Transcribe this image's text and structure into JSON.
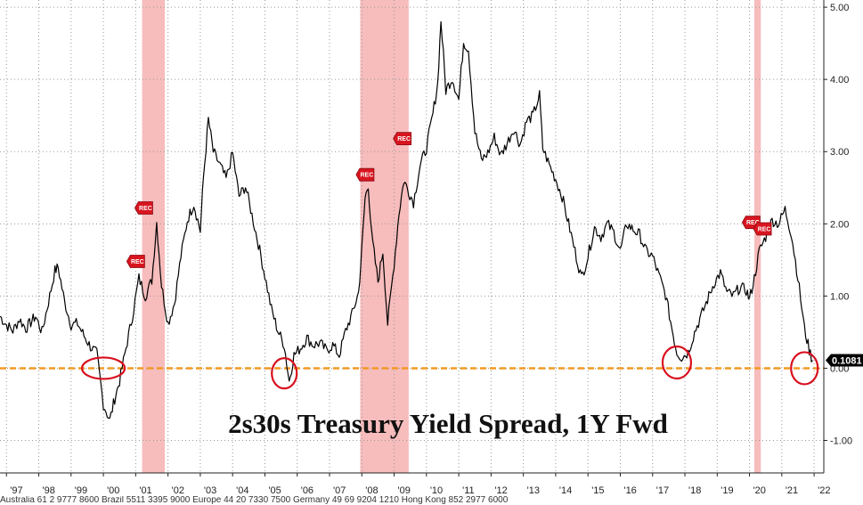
{
  "chart_data": {
    "type": "line",
    "title": "2s30s Treasury Yield Spread, 1Y Fwd",
    "x_ticks": [
      "'97",
      "'98",
      "'99",
      "'00",
      "'01",
      "'02",
      "'03",
      "'04",
      "'05",
      "'06",
      "'07",
      "'08",
      "'09",
      "'10",
      "'11",
      "'12",
      "'13",
      "'14",
      "'15",
      "'16",
      "'17",
      "'18",
      "'19",
      "'20",
      "'21",
      "'22"
    ],
    "y_ticks": [
      "5.00",
      "4.00",
      "3.00",
      "2.00",
      "1.00",
      "0.00",
      "-1.00"
    ],
    "ylim": [
      -1.45,
      5.1
    ],
    "xlim": [
      1996.8,
      2022.3
    ],
    "last_value": "0.1081",
    "reference_line": 0.0,
    "recessions": [
      [
        2001.2,
        2001.9
      ],
      [
        2007.95,
        2009.45
      ],
      [
        2020.15,
        2020.35
      ]
    ],
    "rec_labels": [
      {
        "label": "REC",
        "x": 2001.0,
        "y": 1.48
      },
      {
        "label": "REC",
        "x": 2001.25,
        "y": 2.22
      },
      {
        "label": "REC",
        "x": 2008.1,
        "y": 2.68
      },
      {
        "label": "REC",
        "x": 2009.25,
        "y": 3.18
      },
      {
        "label": "REC",
        "x": 2020.05,
        "y": 2.02
      },
      {
        "label": "REC",
        "x": 2020.4,
        "y": 1.93
      }
    ],
    "circles": [
      {
        "x": 2000.0,
        "y": 0.0
      },
      {
        "x": 2005.6,
        "y": -0.07
      },
      {
        "x": 2017.75,
        "y": 0.08
      },
      {
        "x": 2021.7,
        "y": 0.0
      }
    ],
    "series": [
      {
        "points": [
          [
            1996.8,
            0.72
          ],
          [
            1997.0,
            0.6
          ],
          [
            1997.2,
            0.52
          ],
          [
            1997.4,
            0.68
          ],
          [
            1997.6,
            0.55
          ],
          [
            1997.9,
            0.72
          ],
          [
            1998.1,
            0.5
          ],
          [
            1998.3,
            0.92
          ],
          [
            1998.5,
            1.35
          ],
          [
            1998.6,
            1.4
          ],
          [
            1998.8,
            0.92
          ],
          [
            1999.0,
            0.6
          ],
          [
            1999.2,
            0.62
          ],
          [
            1999.4,
            0.45
          ],
          [
            1999.6,
            0.3
          ],
          [
            1999.8,
            0.2
          ],
          [
            2000.0,
            -0.5
          ],
          [
            2000.2,
            -0.72
          ],
          [
            2000.35,
            -0.42
          ],
          [
            2000.5,
            -0.18
          ],
          [
            2000.7,
            0.28
          ],
          [
            2000.9,
            0.72
          ],
          [
            2001.1,
            1.25
          ],
          [
            2001.3,
            1.0
          ],
          [
            2001.5,
            1.22
          ],
          [
            2001.65,
            2.02
          ],
          [
            2001.8,
            1.15
          ],
          [
            2002.0,
            0.62
          ],
          [
            2002.2,
            0.9
          ],
          [
            2002.4,
            1.55
          ],
          [
            2002.6,
            2.05
          ],
          [
            2002.8,
            2.28
          ],
          [
            2003.0,
            1.9
          ],
          [
            2003.1,
            2.65
          ],
          [
            2003.25,
            3.45
          ],
          [
            2003.4,
            3.0
          ],
          [
            2003.6,
            2.82
          ],
          [
            2003.8,
            2.62
          ],
          [
            2004.0,
            2.98
          ],
          [
            2004.2,
            2.38
          ],
          [
            2004.4,
            2.52
          ],
          [
            2004.6,
            2.12
          ],
          [
            2004.8,
            1.72
          ],
          [
            2005.0,
            1.28
          ],
          [
            2005.2,
            0.82
          ],
          [
            2005.4,
            0.52
          ],
          [
            2005.6,
            0.32
          ],
          [
            2005.75,
            -0.18
          ],
          [
            2005.9,
            0.18
          ],
          [
            2006.1,
            0.28
          ],
          [
            2006.3,
            0.42
          ],
          [
            2006.5,
            0.32
          ],
          [
            2006.7,
            0.35
          ],
          [
            2006.9,
            0.25
          ],
          [
            2007.1,
            0.32
          ],
          [
            2007.3,
            0.18
          ],
          [
            2007.5,
            0.52
          ],
          [
            2007.7,
            0.75
          ],
          [
            2007.9,
            1.05
          ],
          [
            2008.0,
            1.65
          ],
          [
            2008.1,
            2.35
          ],
          [
            2008.2,
            2.55
          ],
          [
            2008.3,
            1.85
          ],
          [
            2008.5,
            1.2
          ],
          [
            2008.65,
            1.62
          ],
          [
            2008.8,
            0.62
          ],
          [
            2009.0,
            1.45
          ],
          [
            2009.15,
            2.15
          ],
          [
            2009.3,
            2.6
          ],
          [
            2009.45,
            2.45
          ],
          [
            2009.6,
            2.3
          ],
          [
            2009.8,
            2.8
          ],
          [
            2010.0,
            3.05
          ],
          [
            2010.2,
            3.52
          ],
          [
            2010.35,
            3.95
          ],
          [
            2010.45,
            4.82
          ],
          [
            2010.6,
            3.85
          ],
          [
            2010.8,
            4.02
          ],
          [
            2011.0,
            3.72
          ],
          [
            2011.15,
            4.52
          ],
          [
            2011.3,
            4.42
          ],
          [
            2011.5,
            3.28
          ],
          [
            2011.7,
            2.88
          ],
          [
            2011.9,
            2.98
          ],
          [
            2012.1,
            3.2
          ],
          [
            2012.3,
            2.95
          ],
          [
            2012.5,
            3.12
          ],
          [
            2012.7,
            3.32
          ],
          [
            2012.9,
            3.1
          ],
          [
            2013.1,
            3.42
          ],
          [
            2013.3,
            3.5
          ],
          [
            2013.5,
            3.78
          ],
          [
            2013.6,
            3.05
          ],
          [
            2013.8,
            2.82
          ],
          [
            2014.0,
            2.62
          ],
          [
            2014.2,
            2.38
          ],
          [
            2014.4,
            2.0
          ],
          [
            2014.6,
            1.62
          ],
          [
            2014.8,
            1.25
          ],
          [
            2015.0,
            1.55
          ],
          [
            2015.2,
            1.95
          ],
          [
            2015.4,
            1.82
          ],
          [
            2015.6,
            2.0
          ],
          [
            2015.8,
            1.88
          ],
          [
            2016.0,
            1.62
          ],
          [
            2016.2,
            2.0
          ],
          [
            2016.4,
            1.92
          ],
          [
            2016.6,
            1.85
          ],
          [
            2016.8,
            1.62
          ],
          [
            2017.0,
            1.55
          ],
          [
            2017.2,
            1.28
          ],
          [
            2017.4,
            1.02
          ],
          [
            2017.6,
            0.55
          ],
          [
            2017.75,
            0.22
          ],
          [
            2017.9,
            0.15
          ],
          [
            2018.1,
            0.22
          ],
          [
            2018.3,
            0.5
          ],
          [
            2018.5,
            0.72
          ],
          [
            2018.7,
            0.95
          ],
          [
            2018.9,
            1.18
          ],
          [
            2019.1,
            1.32
          ],
          [
            2019.3,
            1.05
          ],
          [
            2019.5,
            1.0
          ],
          [
            2019.7,
            1.12
          ],
          [
            2019.9,
            1.08
          ],
          [
            2020.0,
            0.95
          ],
          [
            2020.15,
            1.25
          ],
          [
            2020.3,
            1.62
          ],
          [
            2020.5,
            1.82
          ],
          [
            2020.7,
            2.05
          ],
          [
            2020.9,
            2.0
          ],
          [
            2021.1,
            2.2
          ],
          [
            2021.3,
            1.85
          ],
          [
            2021.5,
            1.25
          ],
          [
            2021.7,
            0.55
          ],
          [
            2021.85,
            0.25
          ],
          [
            2021.95,
            0.11
          ]
        ]
      }
    ]
  },
  "footer": {
    "text": "Australia 61 2 9777 8600 Brazil 5511 3395 9000 Europe 44 20 7330 7500 Germany 49 69 9204 1210 Hong Kong 852 2977 6000"
  }
}
